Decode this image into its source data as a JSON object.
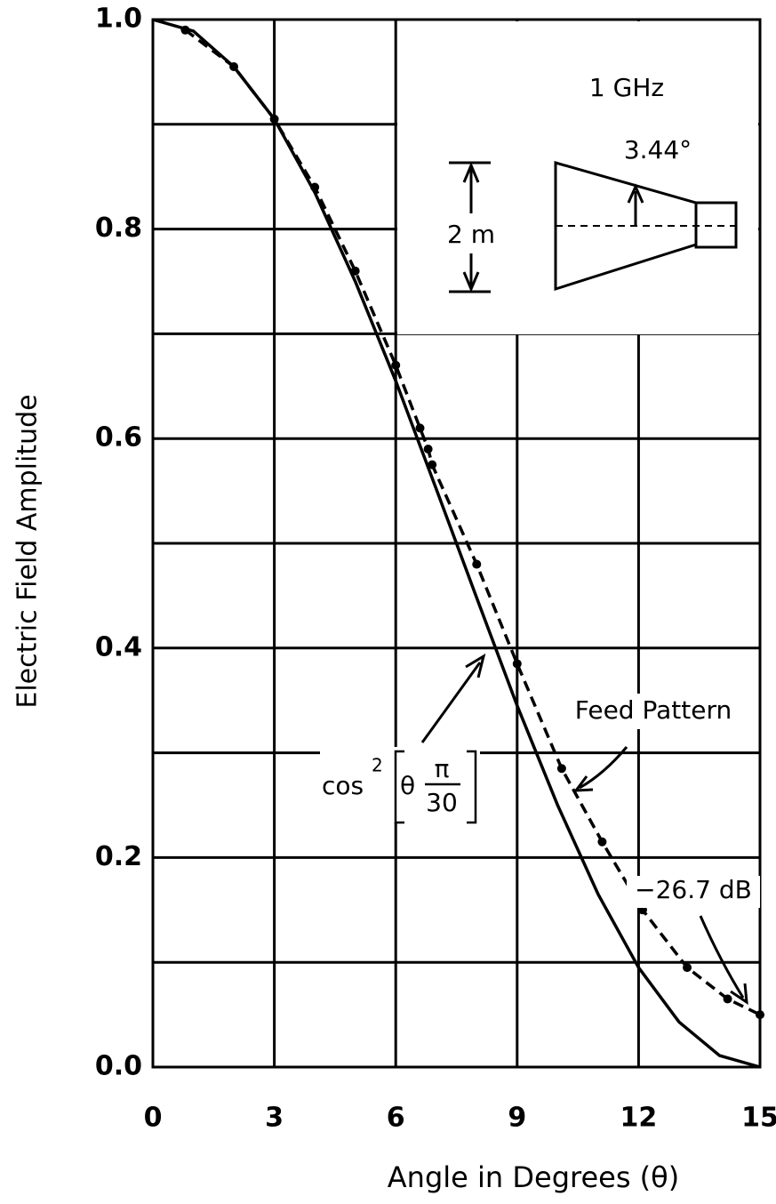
{
  "chart_data": {
    "type": "line",
    "xlabel": "Angle in Degrees (θ)",
    "ylabel": "Electric Field Amplitude",
    "xlim": [
      0,
      15
    ],
    "ylim": [
      0,
      1
    ],
    "xticks": [
      0,
      3,
      6,
      9,
      12,
      15
    ],
    "yticks": [
      {
        "value": 0,
        "label": "0.0"
      },
      {
        "value": 0.2,
        "label": "0.2"
      },
      {
        "value": 0.4,
        "label": "0.4"
      },
      {
        "value": 0.6,
        "label": "0.6"
      },
      {
        "value": 0.8,
        "label": "0.8"
      },
      {
        "value": 1,
        "label": "1.0"
      }
    ],
    "yminor": [
      0.1,
      0.3,
      0.5,
      0.7,
      0.9
    ],
    "grid": true,
    "series": [
      {
        "name": "cos² curve",
        "color": "#000000",
        "dashed": false,
        "markers": false,
        "x": [
          0,
          1,
          2,
          3,
          4,
          5,
          6,
          7,
          8,
          9,
          10,
          11,
          12,
          13,
          14,
          15
        ],
        "values": [
          1,
          0.989,
          0.955,
          0.905,
          0.835,
          0.75,
          0.655,
          0.552,
          0.448,
          0.345,
          0.25,
          0.165,
          0.095,
          0.043,
          0.011,
          0
        ]
      },
      {
        "name": "Feed Pattern",
        "color": "#000000",
        "dashed": true,
        "markers": true,
        "x": [
          0.8,
          2,
          3,
          4,
          5,
          6,
          6.6,
          6.8,
          6.9,
          8,
          9,
          10.1,
          11.1,
          12.1,
          13.2,
          14.2,
          15
        ],
        "values": [
          0.99,
          0.955,
          0.905,
          0.84,
          0.76,
          0.67,
          0.61,
          0.59,
          0.575,
          0.48,
          0.385,
          0.285,
          0.215,
          0.15,
          0.095,
          0.065,
          0.05
        ]
      }
    ],
    "annotations": {
      "frequency": "1 GHz",
      "angle": "3.44°",
      "aperture": "2 m",
      "feed": "Feed Pattern",
      "edge": "−26.7 dB",
      "formula": {
        "base": "cos",
        "exponent": "2",
        "argument": "θ",
        "numerator": "π",
        "denominator": "30"
      }
    }
  }
}
